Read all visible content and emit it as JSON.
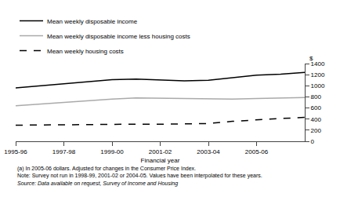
{
  "chart_data": {
    "type": "line",
    "categories": [
      "1995-96",
      null,
      "1997-98",
      null,
      "1999-00",
      null,
      "2001-02",
      null,
      "2003-04",
      null,
      "2005-06",
      null,
      null
    ],
    "series": [
      {
        "name": "Mean weekly disposable income",
        "color": "#000000",
        "line_style": "solid",
        "values": [
          960,
          1000,
          1040,
          1075,
          1110,
          1120,
          1110,
          1090,
          1100,
          1150,
          1190,
          1210,
          1240
        ]
      },
      {
        "name": "Mean weekly disposable income less housing costs",
        "color": "#aaaaaa",
        "line_style": "solid",
        "values": [
          640,
          670,
          710,
          740,
          760,
          780,
          775,
          760,
          755,
          760,
          770,
          780,
          790
        ]
      },
      {
        "name": "Mean weekly housing costs",
        "color": "#000000",
        "line_style": "dash",
        "values": [
          290,
          295,
          300,
          300,
          305,
          308,
          308,
          310,
          320,
          360,
          390,
          410,
          430
        ]
      }
    ],
    "xlabel": "Financial year",
    "ylabel": "$",
    "ylim": [
      0,
      1400
    ],
    "yticks": [
      0,
      200,
      400,
      600,
      800,
      1000,
      1200,
      1400
    ],
    "grid": false,
    "annotations": [
      "(a) In 2005-06 dollars. Adjusted for changes in the Consumer Price Index.",
      "Note: Survey not run in 1998-99, 2001-02 or 2004-05. Values have been interpolated for these years.",
      "Source: Data available on request, Survey of Income and Housing"
    ]
  }
}
